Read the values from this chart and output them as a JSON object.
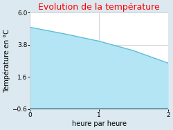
{
  "title": "Evolution de la température",
  "title_color": "#ff0000",
  "xlabel": "heure par heure",
  "ylabel": "Température en °C",
  "x": [
    0,
    0.5,
    1.0,
    1.5,
    2.0
  ],
  "y": [
    5.0,
    4.55,
    4.05,
    3.4,
    2.55
  ],
  "ylim": [
    -0.6,
    6.0
  ],
  "xlim": [
    0,
    2
  ],
  "yticks": [
    -0.6,
    1.6,
    3.8,
    6.0
  ],
  "xticks": [
    0,
    1,
    2
  ],
  "line_color": "#5bbcd6",
  "fill_color": "#b3e5f5",
  "fill_alpha": 1.0,
  "fill_baseline": -0.6,
  "bg_color": "#dce9f0",
  "plot_bg_color": "#ffffff",
  "grid_color": "#cccccc",
  "title_fontsize": 9,
  "label_fontsize": 7,
  "tick_fontsize": 6.5
}
